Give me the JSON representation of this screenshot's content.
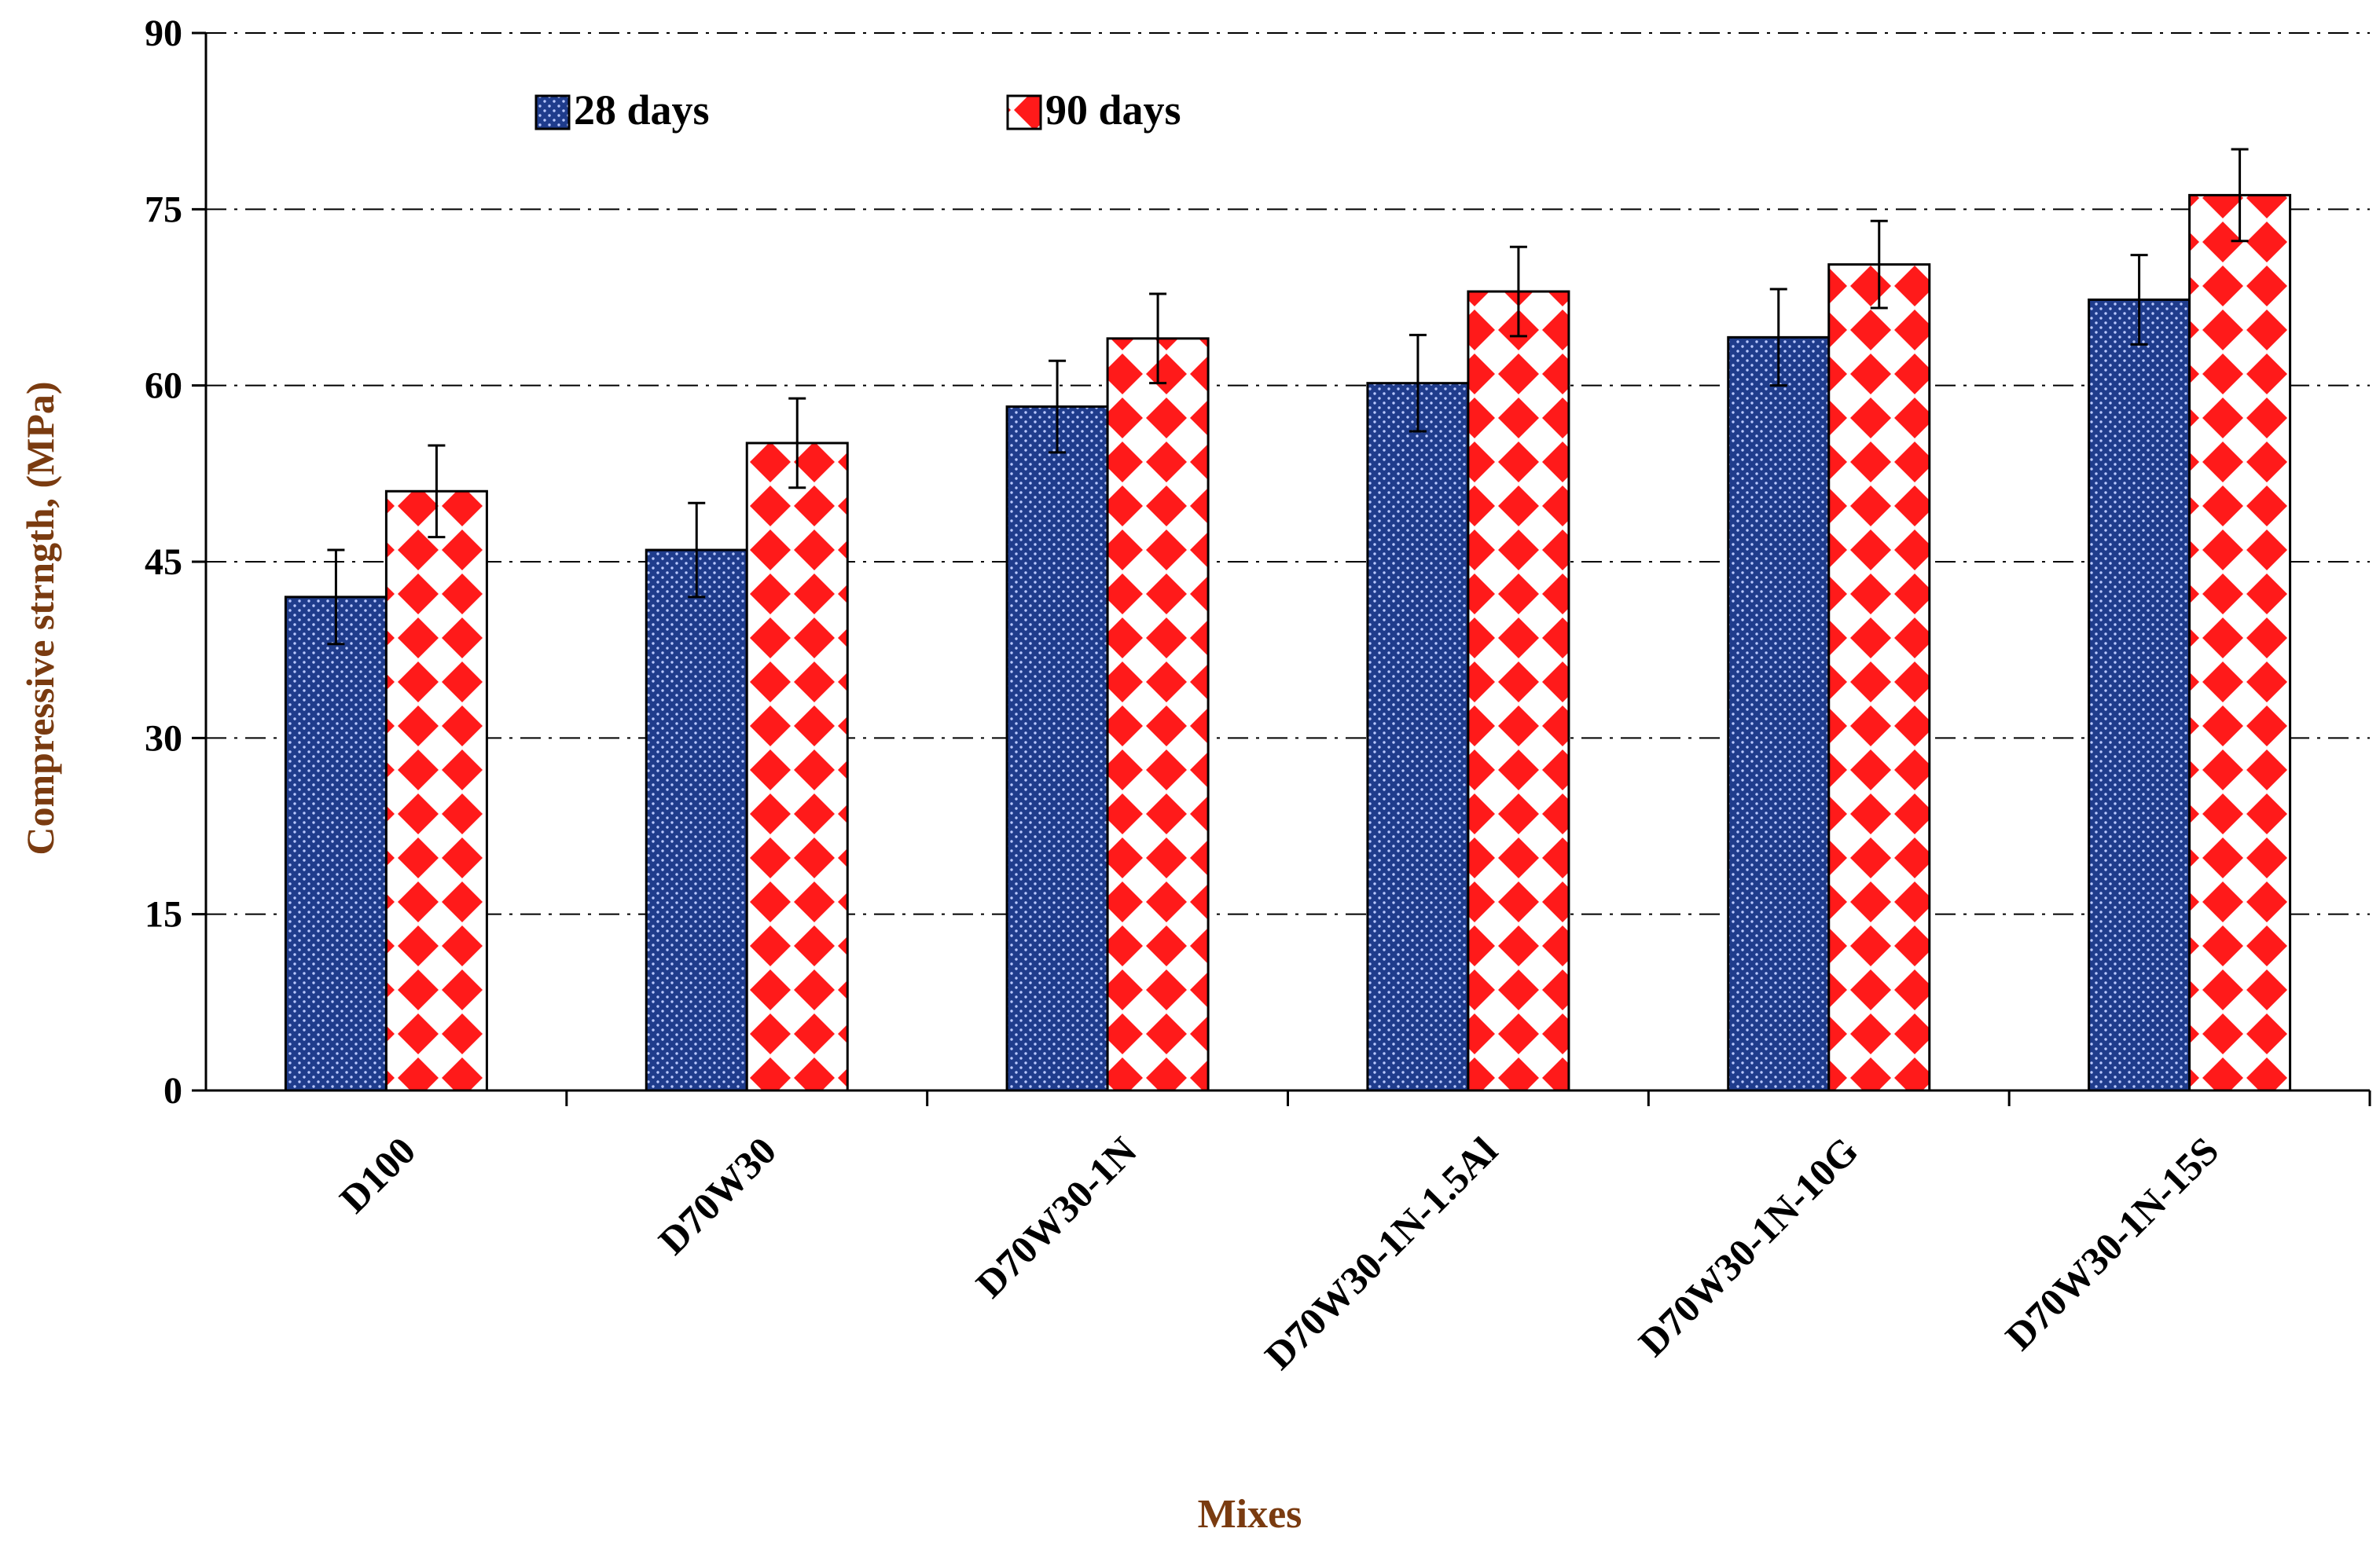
{
  "chart_data": {
    "type": "bar",
    "title": "",
    "xlabel": "Mixes",
    "ylabel": "Compressive  strngth, (MPa)",
    "ylim": [
      0,
      90
    ],
    "yticks": [
      0,
      15,
      30,
      45,
      60,
      75,
      90
    ],
    "grid": true,
    "legend_position": "top-left",
    "categories": [
      "D100",
      "D70W30",
      "D70W30-1N",
      "D70W30-1N-1.5Al",
      "D70W30-1N-10G",
      "D70W30-1N-15S"
    ],
    "series": [
      {
        "name": "28 days",
        "values": [
          42.0,
          46.0,
          58.2,
          60.2,
          64.1,
          67.3
        ],
        "errors": [
          4.0,
          4.0,
          3.9,
          4.1,
          4.1,
          3.8
        ],
        "color": "#1f3c8c",
        "pattern": "dotted"
      },
      {
        "name": "90 days",
        "values": [
          51.0,
          55.1,
          64.0,
          68.0,
          70.3,
          76.2
        ],
        "errors": [
          3.9,
          3.8,
          3.8,
          3.8,
          3.7,
          3.9
        ],
        "color": "#ff1a1a",
        "pattern": "diamond"
      }
    ]
  }
}
